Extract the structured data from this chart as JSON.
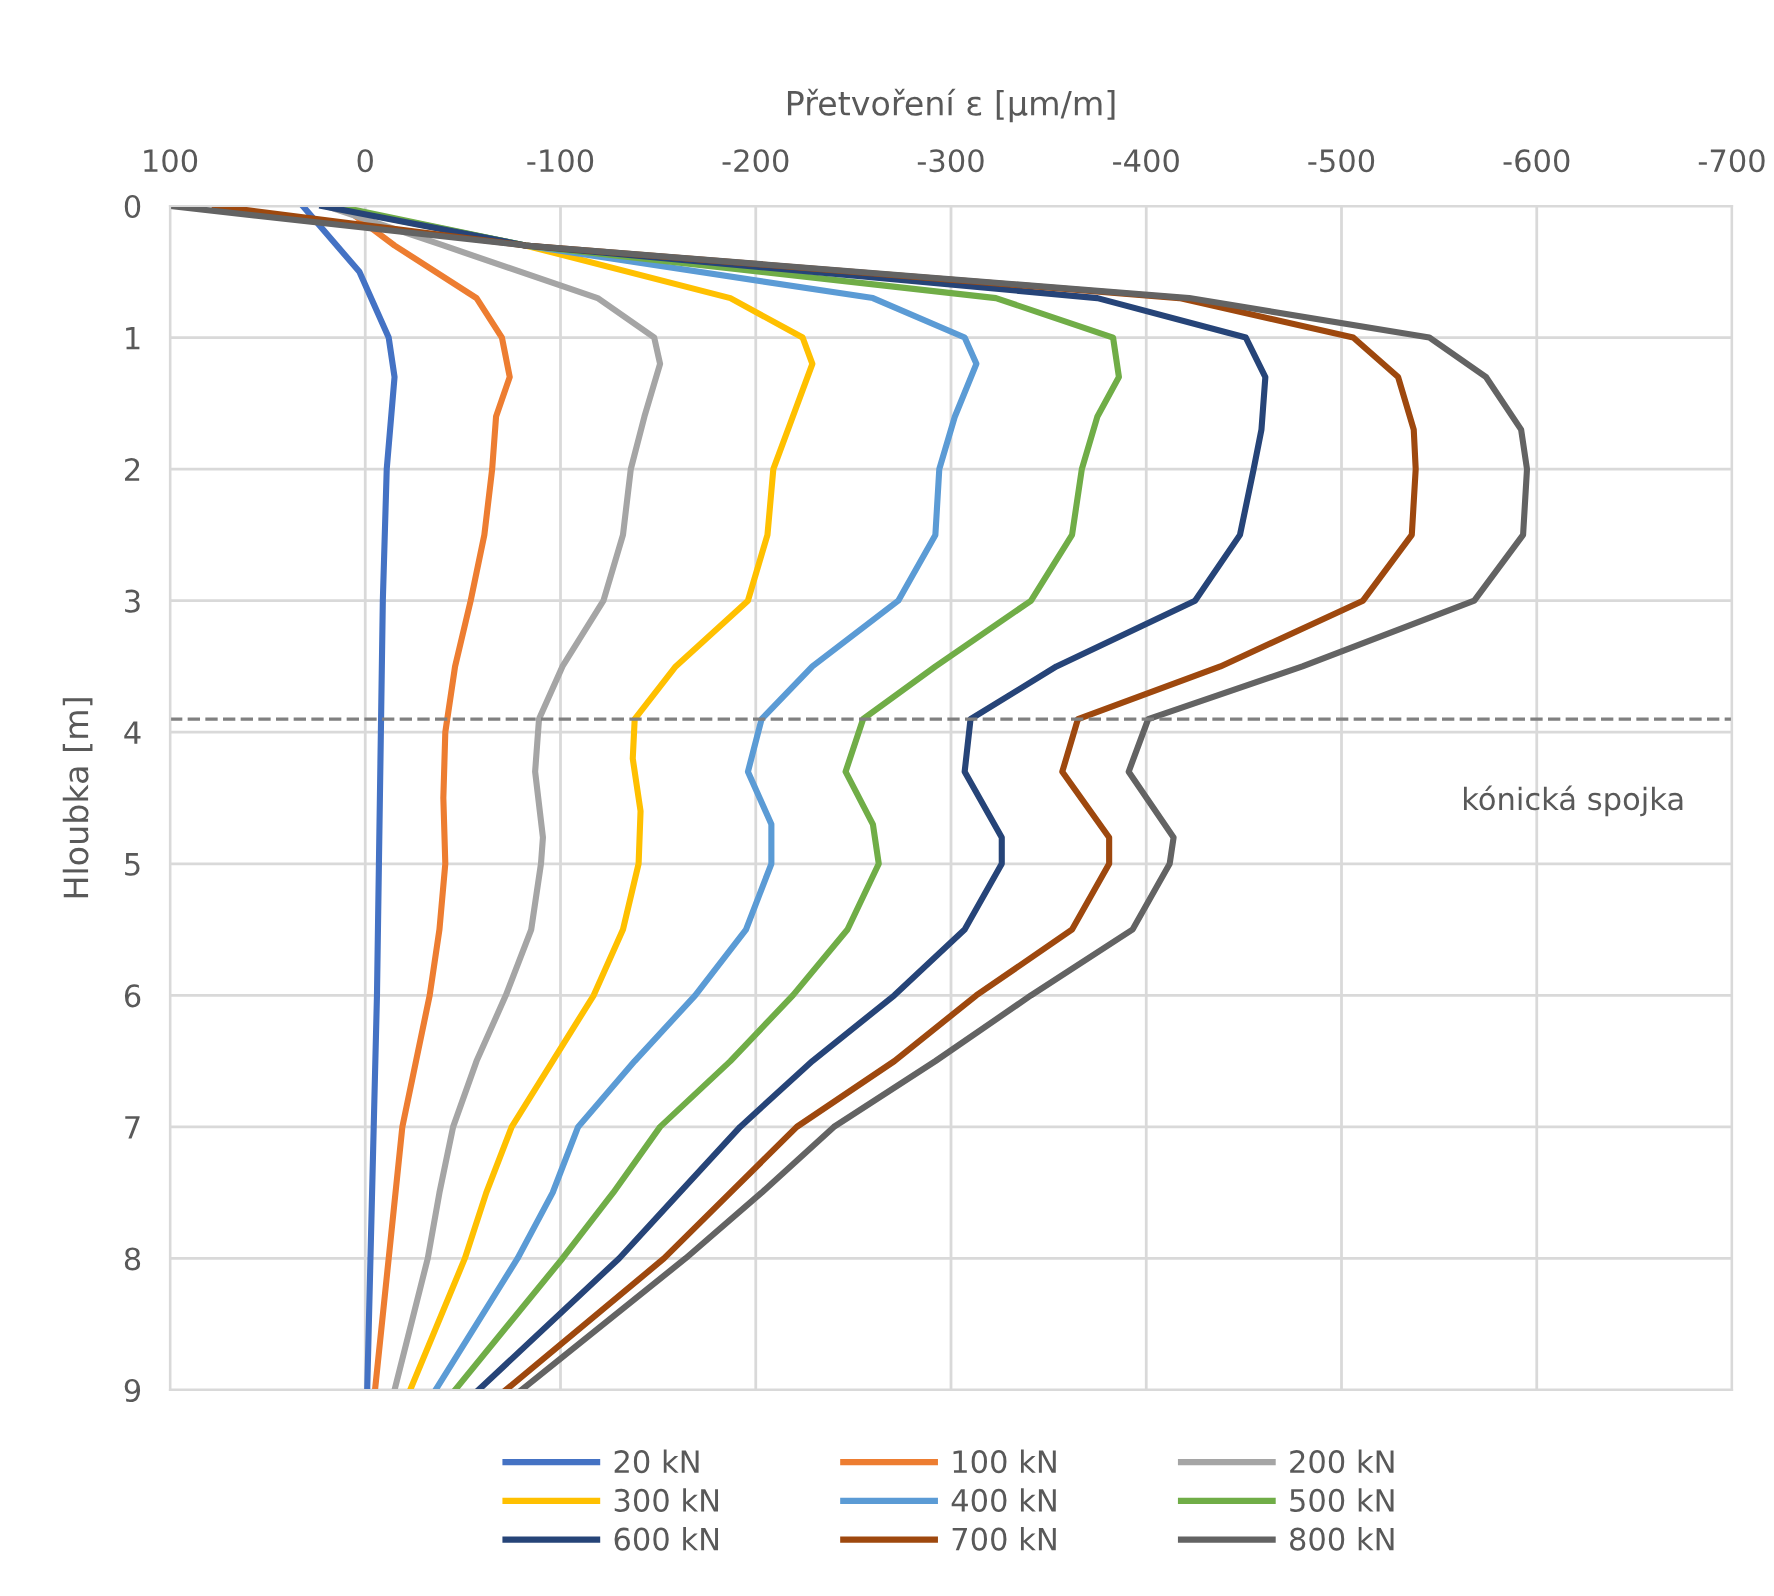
{
  "chart_data": {
    "type": "line",
    "xlabel": "Přetvoření ε [μm/m]",
    "ylabel": "Hloubka [m]",
    "xlim": [
      100,
      -700
    ],
    "xticks": [
      100,
      0,
      -100,
      -200,
      -300,
      -400,
      -500,
      -600,
      -700
    ],
    "ylim": [
      9,
      0
    ],
    "yticks": [
      0,
      1,
      2,
      3,
      4,
      5,
      6,
      7,
      8,
      9
    ],
    "grid": true,
    "legend": "bottom",
    "marker": "none",
    "line_style": "solid",
    "ref_lines": [
      {
        "axis": "y",
        "value": 3.9,
        "label": "kónická spojka",
        "color": "#808080",
        "line_style": "dashed"
      }
    ],
    "series": [
      {
        "name": "20 kN",
        "color": "#4472c4",
        "x": [
          32,
          3,
          -12,
          -15,
          -11,
          -9,
          -8,
          -7,
          -6,
          -1
        ],
        "values": [
          0,
          0.5,
          1.0,
          1.3,
          2,
          3,
          4,
          5,
          6,
          9
        ]
      },
      {
        "name": "100 kN",
        "color": "#ed7d31",
        "x": [
          12,
          -15,
          -57,
          -70,
          -74,
          -67,
          -65,
          -61,
          -54,
          -46,
          -41,
          -40,
          -41,
          -38,
          -33,
          -26,
          -19,
          -12,
          -5
        ],
        "values": [
          0,
          0.3,
          0.7,
          1.0,
          1.3,
          1.6,
          2,
          2.5,
          3,
          3.5,
          4,
          4.5,
          5,
          5.5,
          6,
          6.5,
          7,
          8,
          9
        ]
      },
      {
        "name": "200 kN",
        "color": "#a5a5a5",
        "x": [
          20,
          -40,
          -119,
          -148,
          -151,
          -143,
          -136,
          -132,
          -122,
          -101,
          -89,
          -87,
          -91,
          -90,
          -85,
          -72,
          -57,
          -45,
          -38,
          -32,
          -15
        ],
        "values": [
          0,
          0.3,
          0.7,
          1.0,
          1.2,
          1.6,
          2,
          2.5,
          3,
          3.5,
          3.9,
          4.3,
          4.8,
          5,
          5.5,
          6,
          6.5,
          7,
          7.5,
          8,
          9
        ]
      },
      {
        "name": "300 kN",
        "color": "#ffc000",
        "x": [
          20,
          -82,
          -187,
          -224,
          -229,
          -219,
          -209,
          -206,
          -196,
          -159,
          -138,
          -137,
          -141,
          -140,
          -132,
          -117,
          -96,
          -75,
          -62,
          -51,
          -23
        ],
        "values": [
          0,
          0.3,
          0.7,
          1.0,
          1.2,
          1.6,
          2,
          2.5,
          3,
          3.5,
          3.9,
          4.2,
          4.6,
          5,
          5.5,
          6,
          6.5,
          7,
          7.5,
          8,
          9
        ]
      },
      {
        "name": "400 kN",
        "color": "#5b9bd5",
        "x": [
          18,
          -82,
          -260,
          -307,
          -313,
          -302,
          -294,
          -292,
          -273,
          -229,
          -203,
          -196,
          -208,
          -208,
          -195,
          -169,
          -138,
          -109,
          -96,
          -78,
          -36
        ],
        "values": [
          0,
          0.3,
          0.7,
          1.0,
          1.2,
          1.6,
          2,
          2.5,
          3,
          3.5,
          3.9,
          4.3,
          4.7,
          5,
          5.5,
          6,
          6.5,
          7,
          7.5,
          8,
          9
        ]
      },
      {
        "name": "500 kN",
        "color": "#70ad47",
        "x": [
          15,
          -82,
          -323,
          -383,
          -386,
          -375,
          -367,
          -362,
          -341,
          -292,
          -255,
          -246,
          -260,
          -263,
          -247,
          -219,
          -187,
          -151,
          -127,
          -101,
          -46
        ],
        "values": [
          0,
          0.3,
          0.7,
          1.0,
          1.3,
          1.6,
          2,
          2.5,
          3,
          3.5,
          3.9,
          4.3,
          4.7,
          5,
          5.5,
          6,
          6.5,
          7,
          7.5,
          8,
          9
        ]
      },
      {
        "name": "600 kN",
        "color": "#264478",
        "x": [
          22,
          -82,
          -375,
          -451,
          -461,
          -459,
          -455,
          -448,
          -425,
          -354,
          -310,
          -307,
          -326,
          -326,
          -307,
          -271,
          -229,
          -192,
          -161,
          -130,
          -58
        ],
        "values": [
          0,
          0.3,
          0.7,
          1.0,
          1.3,
          1.7,
          2,
          2.5,
          3,
          3.5,
          3.9,
          4.3,
          4.8,
          5,
          5.5,
          6,
          6.5,
          7,
          7.5,
          8,
          9
        ]
      },
      {
        "name": "700 kN",
        "color": "#9e480e",
        "x": [
          77,
          -82,
          -417,
          -506,
          -529,
          -537,
          -538,
          -536,
          -511,
          -438,
          -365,
          -357,
          -381,
          -381,
          -362,
          -313,
          -271,
          -221,
          -187,
          -153,
          -72
        ],
        "values": [
          0,
          0.3,
          0.7,
          1.0,
          1.3,
          1.7,
          2,
          2.5,
          3,
          3.5,
          3.9,
          4.3,
          4.8,
          5,
          5.5,
          6,
          6.5,
          7,
          7.5,
          8,
          9
        ]
      },
      {
        "name": "800 kN",
        "color": "#636363",
        "x": [
          100,
          -82,
          -422,
          -545,
          -574,
          -592,
          -595,
          -593,
          -568,
          -480,
          -401,
          -391,
          -414,
          -412,
          -393,
          -341,
          -292,
          -240,
          -203,
          -164,
          -80
        ],
        "values": [
          0,
          0.3,
          0.7,
          1.0,
          1.3,
          1.7,
          2,
          2.5,
          3,
          3.5,
          3.9,
          4.3,
          4.8,
          5,
          5.5,
          6,
          6.5,
          7,
          7.5,
          8,
          9
        ]
      }
    ]
  }
}
